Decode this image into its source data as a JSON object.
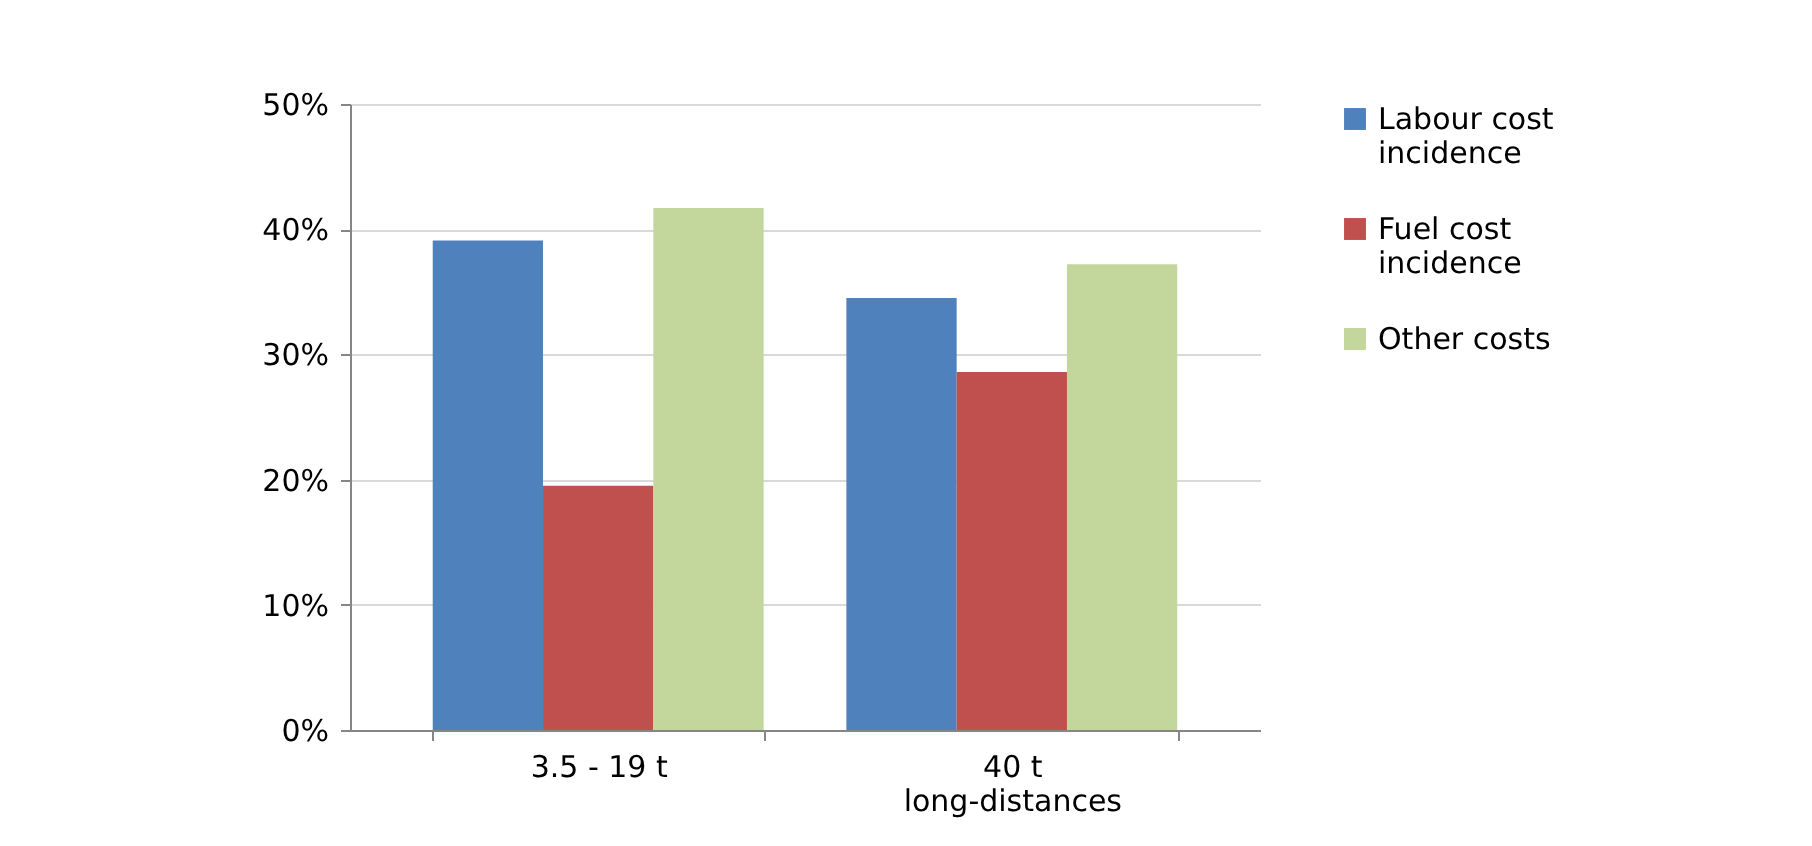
{
  "chart_data": {
    "type": "bar",
    "categories": [
      "3.5 - 19 t",
      "40 t long-distances"
    ],
    "series": [
      {
        "name": "Labour cost incidence",
        "color": "#4f81bd",
        "values": [
          39.1,
          34.5
        ]
      },
      {
        "name": "Fuel cost incidence",
        "color": "#c0504d",
        "values": [
          19.5,
          28.6
        ]
      },
      {
        "name": "Other costs",
        "color": "#c3d69b",
        "values": [
          41.7,
          37.2
        ]
      }
    ],
    "ylim": [
      0,
      50
    ],
    "yticks": [
      {
        "value": 0,
        "label": "0%"
      },
      {
        "value": 10,
        "label": "10%"
      },
      {
        "value": 20,
        "label": "20%"
      },
      {
        "value": 30,
        "label": "30%"
      },
      {
        "value": 40,
        "label": "40%"
      },
      {
        "value": 50,
        "label": "50%"
      }
    ],
    "grid": "y",
    "legend": "right"
  }
}
